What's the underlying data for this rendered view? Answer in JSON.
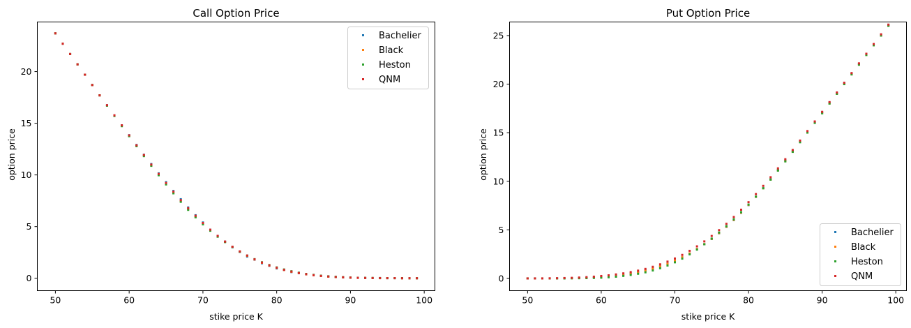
{
  "chart_data": [
    {
      "type": "scatter",
      "title": "Call Option Price",
      "xlabel": "stike price K",
      "ylabel": "option price",
      "xlim": [
        47.55,
        101.45
      ],
      "ylim": [
        -1.2,
        24.8
      ],
      "xticks": [
        50,
        60,
        70,
        80,
        90,
        100
      ],
      "yticks": [
        0,
        5,
        10,
        15,
        20
      ],
      "legend_position": "upper right",
      "grid": false,
      "x": [
        50,
        51,
        52,
        53,
        54,
        55,
        56,
        57,
        58,
        59,
        60,
        61,
        62,
        63,
        64,
        65,
        66,
        67,
        68,
        69,
        70,
        71,
        72,
        73,
        74,
        75,
        76,
        77,
        78,
        79,
        80,
        81,
        82,
        83,
        84,
        85,
        86,
        87,
        88,
        89,
        90,
        91,
        92,
        93,
        94,
        95,
        96,
        97,
        98,
        99
      ],
      "series": [
        {
          "name": "Bachelier",
          "color": "#1f77b4",
          "values": [
            23.7,
            22.7,
            21.7,
            20.7,
            19.7,
            18.7,
            17.7,
            16.75,
            15.75,
            14.8,
            13.85,
            12.9,
            11.95,
            11.05,
            10.15,
            9.3,
            8.45,
            7.65,
            6.85,
            6.1,
            5.4,
            4.7,
            4.1,
            3.55,
            3.0,
            2.55,
            2.1,
            1.8,
            1.45,
            1.2,
            0.95,
            0.8,
            0.6,
            0.5,
            0.38,
            0.3,
            0.22,
            0.17,
            0.12,
            0.09,
            0.06,
            0.05,
            0.03,
            0.02,
            0.02,
            0.01,
            0.01,
            0.0,
            0.0,
            0.0
          ]
        },
        {
          "name": "Black",
          "color": "#ff7f0e",
          "values": [
            23.7,
            22.7,
            21.7,
            20.7,
            19.7,
            18.7,
            17.7,
            16.72,
            15.72,
            14.75,
            13.78,
            12.82,
            11.87,
            10.93,
            10.02,
            9.13,
            8.28,
            7.45,
            6.68,
            5.95,
            5.27,
            4.63,
            4.05,
            3.52,
            3.02,
            2.57,
            2.17,
            1.82,
            1.5,
            1.23,
            1.0,
            0.8,
            0.63,
            0.5,
            0.38,
            0.29,
            0.22,
            0.16,
            0.12,
            0.09,
            0.06,
            0.04,
            0.03,
            0.02,
            0.01,
            0.01,
            0.01,
            0.0,
            0.0,
            0.0
          ]
        },
        {
          "name": "Heston",
          "color": "#2ca02c",
          "values": [
            23.7,
            22.7,
            21.7,
            20.7,
            19.7,
            18.7,
            17.7,
            16.7,
            15.7,
            14.72,
            13.75,
            12.78,
            11.82,
            10.88,
            9.97,
            9.08,
            8.22,
            7.4,
            6.62,
            5.9,
            5.22,
            4.6,
            4.02,
            3.5,
            3.02,
            2.58,
            2.2,
            1.85,
            1.55,
            1.28,
            1.05,
            0.85,
            0.68,
            0.54,
            0.42,
            0.33,
            0.25,
            0.19,
            0.14,
            0.1,
            0.07,
            0.05,
            0.04,
            0.03,
            0.02,
            0.01,
            0.01,
            0.01,
            0.0,
            0.0
          ]
        },
        {
          "name": "QNM",
          "color": "#d62728",
          "values": [
            23.7,
            22.7,
            21.7,
            20.7,
            19.7,
            18.7,
            17.7,
            16.75,
            15.77,
            14.8,
            13.83,
            12.87,
            11.93,
            11.0,
            10.1,
            9.22,
            8.38,
            7.56,
            6.78,
            6.05,
            5.35,
            4.7,
            4.1,
            3.55,
            3.05,
            2.6,
            2.2,
            1.83,
            1.52,
            1.25,
            1.02,
            0.82,
            0.65,
            0.51,
            0.4,
            0.3,
            0.23,
            0.17,
            0.12,
            0.09,
            0.06,
            0.04,
            0.03,
            0.02,
            0.01,
            0.01,
            0.01,
            0.0,
            0.0,
            0.0
          ]
        }
      ]
    },
    {
      "type": "scatter",
      "title": "Put Option Price",
      "xlabel": "stike price K",
      "ylabel": "option price",
      "xlim": [
        47.55,
        101.45
      ],
      "ylim": [
        -1.26,
        26.4
      ],
      "xticks": [
        50,
        60,
        70,
        80,
        90,
        100
      ],
      "yticks": [
        0,
        5,
        10,
        15,
        20,
        25
      ],
      "legend_position": "lower right",
      "grid": false,
      "x": [
        50,
        51,
        52,
        53,
        54,
        55,
        56,
        57,
        58,
        59,
        60,
        61,
        62,
        63,
        64,
        65,
        66,
        67,
        68,
        69,
        70,
        71,
        72,
        73,
        74,
        75,
        76,
        77,
        78,
        79,
        80,
        81,
        82,
        83,
        84,
        85,
        86,
        87,
        88,
        89,
        90,
        91,
        92,
        93,
        94,
        95,
        96,
        97,
        98,
        99
      ],
      "series": [
        {
          "name": "Bachelier",
          "color": "#1f77b4",
          "values": [
            0.0,
            0.0,
            0.0,
            0.0,
            0.01,
            0.02,
            0.03,
            0.05,
            0.08,
            0.12,
            0.17,
            0.23,
            0.3,
            0.4,
            0.52,
            0.66,
            0.83,
            1.02,
            1.25,
            1.52,
            1.83,
            2.18,
            2.57,
            3.02,
            3.52,
            4.06,
            4.65,
            5.3,
            6.0,
            6.75,
            7.55,
            8.4,
            9.3,
            10.22,
            11.18,
            12.15,
            13.13,
            14.12,
            15.1,
            16.1,
            17.1,
            18.1,
            19.1,
            20.1,
            21.1,
            22.1,
            23.1,
            24.1,
            25.1,
            26.1
          ]
        },
        {
          "name": "Black",
          "color": "#ff7f0e",
          "values": [
            0.0,
            0.0,
            0.0,
            0.0,
            0.0,
            0.01,
            0.02,
            0.03,
            0.05,
            0.08,
            0.12,
            0.18,
            0.26,
            0.36,
            0.48,
            0.63,
            0.8,
            1.0,
            1.23,
            1.5,
            1.82,
            2.18,
            2.58,
            3.03,
            3.53,
            4.07,
            4.67,
            5.32,
            6.02,
            6.77,
            7.57,
            8.4,
            9.28,
            10.18,
            11.12,
            12.08,
            13.05,
            14.04,
            15.03,
            16.02,
            17.02,
            18.02,
            19.02,
            20.02,
            21.01,
            22.01,
            23.01,
            24.01,
            25.01,
            26.01
          ]
        },
        {
          "name": "Heston",
          "color": "#2ca02c",
          "values": [
            0.0,
            0.0,
            0.0,
            0.0,
            0.0,
            0.0,
            0.01,
            0.02,
            0.03,
            0.05,
            0.08,
            0.12,
            0.18,
            0.26,
            0.36,
            0.48,
            0.63,
            0.82,
            1.05,
            1.33,
            1.66,
            2.04,
            2.48,
            2.97,
            3.52,
            4.1,
            4.72,
            5.38,
            6.08,
            6.82,
            7.6,
            8.42,
            9.28,
            10.17,
            11.1,
            12.05,
            13.03,
            14.02,
            15.01,
            16.01,
            17.0,
            18.0,
            19.0,
            20.0,
            21.0,
            22.0,
            23.0,
            24.0,
            25.0,
            26.0
          ]
        },
        {
          "name": "QNM",
          "color": "#d62728",
          "values": [
            0.0,
            0.0,
            0.0,
            0.01,
            0.02,
            0.04,
            0.06,
            0.09,
            0.13,
            0.18,
            0.25,
            0.32,
            0.41,
            0.52,
            0.65,
            0.8,
            0.98,
            1.2,
            1.45,
            1.73,
            2.05,
            2.42,
            2.84,
            3.3,
            3.81,
            4.37,
            4.97,
            5.62,
            6.32,
            7.07,
            7.85,
            8.68,
            9.53,
            10.42,
            11.33,
            12.27,
            13.22,
            14.19,
            15.17,
            16.16,
            17.15,
            18.15,
            19.14,
            20.14,
            21.14,
            22.14,
            23.13,
            24.13,
            25.13,
            26.13
          ]
        }
      ]
    }
  ]
}
